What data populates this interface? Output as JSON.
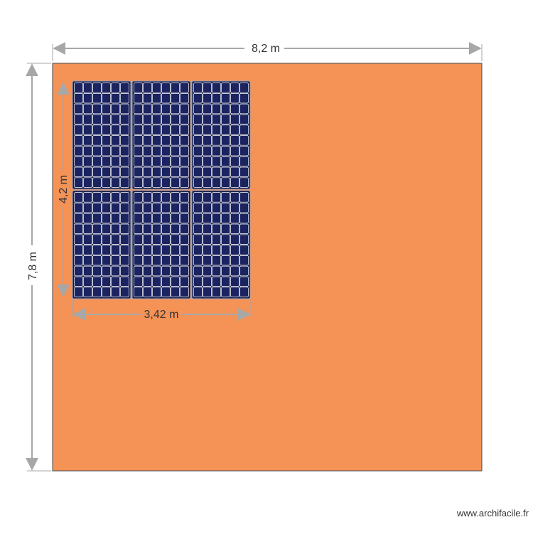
{
  "plan": {
    "roof_width_label": "8,2 m",
    "roof_height_label": "7,8 m",
    "array_width_label": "3,42 m",
    "array_height_label": "4,2 m"
  },
  "solar_array": {
    "rows": 2,
    "columns": 3,
    "cells_per_panel_x": 6,
    "cells_per_panel_y": 10
  },
  "colors": {
    "roof": "#f59256",
    "roof_border": "#4a4a4a",
    "panel": "#141a47",
    "cell": "#1b2460",
    "cell_grid": "#ffffff",
    "panel_frame": "#9aa0b8",
    "dimension_line": "#a7a7a7",
    "label_bg": "#ffffff",
    "array_label_bg": "#f59256",
    "text": "#333333"
  },
  "footer": {
    "watermark": "www.archifacile.fr"
  }
}
